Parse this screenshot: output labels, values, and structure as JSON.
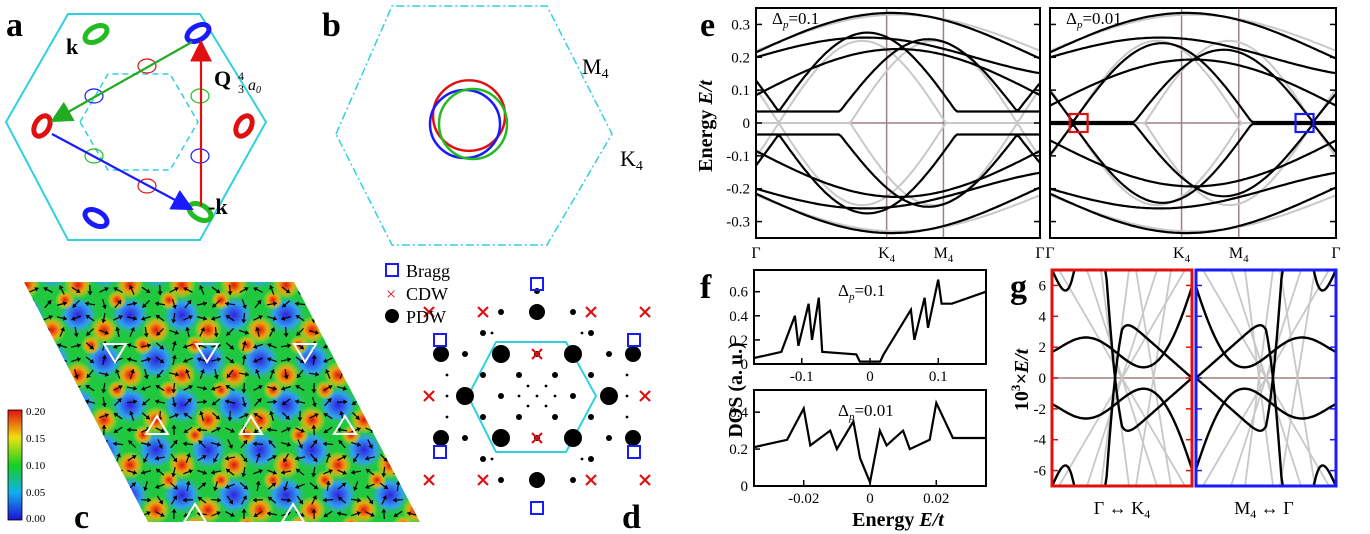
{
  "panel_labels": {
    "a": "a",
    "b": "b",
    "c": "c",
    "d": "d",
    "e": "e",
    "f": "f",
    "g": "g"
  },
  "panel_a": {
    "k": "k",
    "mk": "-k",
    "Q": "Q",
    "Q_sub": "4",
    "Q_frac": "3",
    "Q_a": "a",
    "Q_a_sub": "0"
  },
  "panel_b": {
    "M4": "M",
    "M4_sub": "4",
    "K4": "K",
    "K4_sub": "4"
  },
  "panel_c": {
    "colorbar_ticks": [
      "0.20",
      "0.15",
      "0.10",
      "0.05",
      "0.00"
    ],
    "colors": {
      "low": "#3020e0",
      "mid": "#18d020",
      "high": "#f03010"
    }
  },
  "panel_d": {
    "legend": [
      "Bragg",
      "CDW",
      "PDW"
    ],
    "colors": {
      "bragg": "#1a1aff",
      "cdw": "#e01010",
      "pdw": "#000000"
    }
  },
  "panel_e": {
    "ylabel": "Energy",
    "ylabel_it": "E/t",
    "left": {
      "delta": "=0.1"
    },
    "right": {
      "delta": "=0.01"
    },
    "delta_sym": "Δ",
    "delta_sub": "p",
    "yticks": [
      "0.3",
      "0.2",
      "0.1",
      "0",
      "-0.1",
      "-0.2",
      "-0.3"
    ],
    "xticks": [
      "Γ",
      "K",
      "M",
      "Γ"
    ],
    "xtick_subs": [
      "",
      "4",
      "4",
      ""
    ],
    "colors": {
      "bands": "#000000",
      "bare": "#c8c8c8",
      "grid": "#a08080",
      "red_box": "#e01010",
      "blue_box": "#1a1aff"
    }
  },
  "panel_f": {
    "ylabel": "DOS (a. u.)",
    "xlabel": "Energy",
    "xlabel_it": "E/t",
    "top": {
      "delta": "=0.1",
      "yticks": [
        "0.6",
        "0.4",
        "0.2",
        "0"
      ],
      "xticks": [
        "-0.1",
        "0",
        "0.1"
      ]
    },
    "bottom": {
      "delta": "=0.01",
      "yticks": [
        "0.4",
        "0.2",
        "0"
      ],
      "xticks": [
        "-0.02",
        "0",
        "0.02"
      ]
    }
  },
  "panel_g": {
    "ylabel_pre": "10",
    "ylabel_sup": "3",
    "ylabel_post": "×E/t",
    "yticks": [
      "6",
      "4",
      "2",
      "0",
      "-2",
      "-4",
      "-6"
    ],
    "left_label": "Γ ↔ K",
    "left_sub": "4",
    "right_label": "M",
    "right_sub": "4",
    "right_post": " ↔ Γ"
  },
  "chart_data": [
    {
      "type": "line",
      "title": "",
      "xlabel": "",
      "ylabel": "Energy E/t",
      "categories": [
        "Γ",
        "K4",
        "M4",
        "Γ"
      ],
      "ylim": [
        -0.35,
        0.35
      ],
      "annotation": "Δp=0.1",
      "series": []
    },
    {
      "type": "line",
      "title": "",
      "xlabel": "",
      "ylabel": "Energy E/t",
      "categories": [
        "Γ",
        "K4",
        "M4",
        "Γ"
      ],
      "ylim": [
        -0.35,
        0.35
      ],
      "annotation": "Δp=0.01",
      "series": []
    },
    {
      "type": "line",
      "xlabel": "",
      "ylabel": "DOS (a. u.)",
      "xlim": [
        -0.17,
        0.17
      ],
      "ylim": [
        0,
        0.78
      ],
      "annotation": "Δp=0.1",
      "series": [
        {
          "x": [
            -0.17,
            -0.13,
            -0.11,
            -0.105,
            -0.09,
            -0.085,
            -0.075,
            -0.07,
            -0.02,
            -0.015,
            0.015,
            0.02,
            0.06,
            0.065,
            0.08,
            0.085,
            0.1,
            0.105,
            0.12,
            0.17
          ],
          "values": [
            0.05,
            0.1,
            0.4,
            0.15,
            0.5,
            0.2,
            0.55,
            0.1,
            0.08,
            0.02,
            0.02,
            0.08,
            0.45,
            0.2,
            0.55,
            0.3,
            0.7,
            0.5,
            0.5,
            0.6
          ]
        }
      ]
    },
    {
      "type": "line",
      "xlabel": "Energy E/t",
      "ylabel": "DOS (a. u.)",
      "xlim": [
        -0.035,
        0.035
      ],
      "ylim": [
        0,
        0.52
      ],
      "annotation": "Δp=0.01",
      "series": [
        {
          "x": [
            -0.035,
            -0.025,
            -0.02,
            -0.018,
            -0.012,
            -0.01,
            -0.005,
            -0.003,
            0,
            0.003,
            0.005,
            0.01,
            0.012,
            0.018,
            0.02,
            0.025,
            0.035
          ],
          "values": [
            0.21,
            0.25,
            0.42,
            0.22,
            0.3,
            0.2,
            0.35,
            0.15,
            0.02,
            0.3,
            0.22,
            0.3,
            0.2,
            0.25,
            0.45,
            0.26,
            0.26
          ]
        }
      ]
    },
    {
      "type": "line",
      "ylabel": "10^3×E/t",
      "ylim": [
        -7,
        7
      ],
      "categories": [
        "Γ ↔ K4"
      ],
      "series": []
    },
    {
      "type": "line",
      "ylabel": "10^3×E/t",
      "ylim": [
        -7,
        7
      ],
      "categories": [
        "M4 ↔ Γ"
      ],
      "series": []
    }
  ]
}
